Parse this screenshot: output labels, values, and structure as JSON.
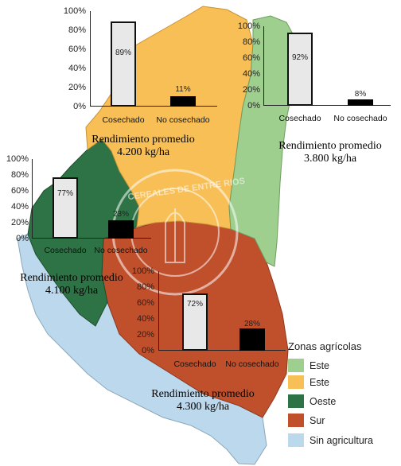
{
  "colors": {
    "este_green": "#9fcf8f",
    "este_yellow": "#f7bf55",
    "oeste": "#2e7345",
    "sur": "#c0502c",
    "sin_agricultura": "#bcd8ec"
  },
  "watermark": {
    "text": "CEREALES DE ENTRE RIOS"
  },
  "charts": [
    {
      "id": "north",
      "region": "Este (amarillo)",
      "ticks": [
        "100%",
        "80%",
        "60%",
        "40%",
        "20%",
        "0%"
      ],
      "categories": [
        "Cosechado",
        "No cosechado"
      ],
      "values": [
        89,
        11
      ],
      "labels": [
        "89%",
        "11%"
      ],
      "yield_line1": "Rendimiento promedio",
      "yield_line2": "4.200 kg/ha"
    },
    {
      "id": "east",
      "region": "Este (verde)",
      "ticks": [
        "100%",
        "80%",
        "60%",
        "40%",
        "20%",
        "0%"
      ],
      "categories": [
        "Cosechado",
        "No cosechado"
      ],
      "values": [
        92,
        8
      ],
      "labels": [
        "92%",
        "8%"
      ],
      "yield_line1": "Rendimiento promedio",
      "yield_line2": "3.800 kg/ha"
    },
    {
      "id": "west",
      "region": "Oeste",
      "ticks": [
        "100%",
        "80%",
        "60%",
        "40%",
        "20%",
        "0%"
      ],
      "categories": [
        "Cosechado",
        "No cosechado"
      ],
      "values": [
        77,
        23
      ],
      "labels": [
        "77%",
        "23%"
      ],
      "yield_line1": "Rendimiento promedio",
      "yield_line2": "4.100 kg/ha"
    },
    {
      "id": "south",
      "region": "Sur",
      "ticks": [
        "100%",
        "80%",
        "60%",
        "40%",
        "20%",
        "0%"
      ],
      "categories": [
        "Cosechado",
        "No cosechado"
      ],
      "values": [
        72,
        28
      ],
      "labels": [
        "72%",
        "28%"
      ],
      "yield_line1": "Rendimiento promedio",
      "yield_line2": "4.300 kg/ha"
    }
  ],
  "legend": {
    "title": "Zonas agrícolas",
    "items": [
      {
        "label": "Este",
        "color": "#9fcf8f"
      },
      {
        "label": "Este",
        "color": "#f7bf55"
      },
      {
        "label": "Oeste",
        "color": "#2e7345"
      },
      {
        "label": "Sur",
        "color": "#c0502c"
      },
      {
        "label": "Sin agricultura",
        "color": "#bcd8ec"
      }
    ]
  }
}
